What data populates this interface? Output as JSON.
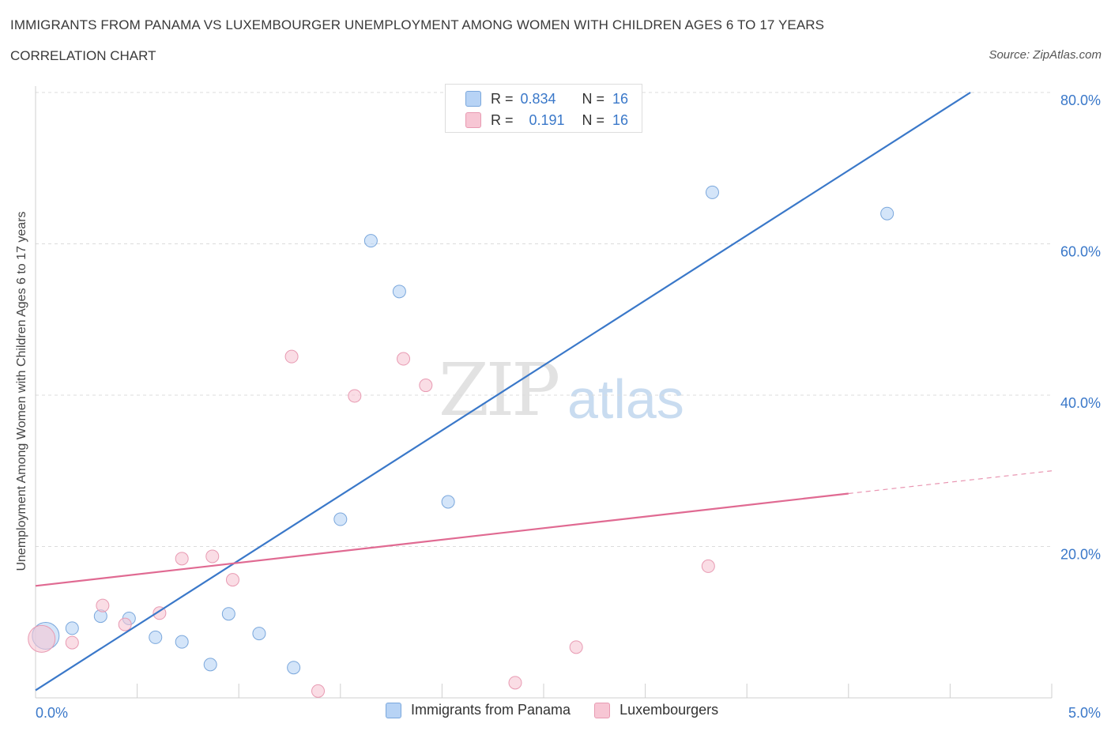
{
  "title": "IMMIGRANTS FROM PANAMA VS LUXEMBOURGER UNEMPLOYMENT AMONG WOMEN WITH CHILDREN AGES 6 TO 17 YEARS",
  "subtitle": "CORRELATION CHART",
  "source": "Source: ZipAtlas.com",
  "watermark": {
    "zip": "ZIP",
    "atlas": "atlas"
  },
  "stats": [
    {
      "r_label": "R =",
      "r": "0.834",
      "n_label": "N =",
      "n": "16",
      "color": "#b7d3f5",
      "border": "#7aa7dc"
    },
    {
      "r_label": "R =",
      "r": "0.191",
      "n_label": "N =",
      "n": "16",
      "color": "#f7c6d4",
      "border": "#e89ab2"
    }
  ],
  "legend": [
    {
      "label": "Immigrants from Panama",
      "color": "#b7d3f5",
      "border": "#7aa7dc"
    },
    {
      "label": "Luxembourgers",
      "color": "#f7c6d4",
      "border": "#e89ab2"
    }
  ],
  "chart_data": {
    "type": "scatter",
    "title": "IMMIGRANTS FROM PANAMA VS LUXEMBOURGER UNEMPLOYMENT AMONG WOMEN WITH CHILDREN AGES 6 TO 17 YEARS",
    "xlabel": "",
    "ylabel": "Unemployment Among Women with Children Ages 6 to 17 years",
    "xlim": [
      0,
      5
    ],
    "ylim": [
      0,
      80
    ],
    "x_tick_labels": [
      {
        "value": 0,
        "label": "0.0%"
      },
      {
        "value": 5,
        "label": "5.0%"
      }
    ],
    "y_tick_labels": [
      {
        "value": 20,
        "label": "20.0%"
      },
      {
        "value": 40,
        "label": "40.0%"
      },
      {
        "value": 60,
        "label": "60.0%"
      },
      {
        "value": 80,
        "label": "80.0%"
      }
    ],
    "series": [
      {
        "name": "Immigrants from Panama",
        "color": "#b7d3f5",
        "stroke": "#7aa7dc",
        "line_color": "#3a78c9",
        "trend": {
          "x1": 0,
          "y1": 1.0,
          "x2": 4.6,
          "y2": 80.0
        },
        "points": [
          {
            "x": 0.05,
            "y": 8.2,
            "big": true
          },
          {
            "x": 0.18,
            "y": 9.2
          },
          {
            "x": 0.32,
            "y": 10.8
          },
          {
            "x": 0.46,
            "y": 10.5
          },
          {
            "x": 0.59,
            "y": 8.0
          },
          {
            "x": 0.72,
            "y": 7.4
          },
          {
            "x": 0.86,
            "y": 4.4
          },
          {
            "x": 0.95,
            "y": 11.1
          },
          {
            "x": 1.1,
            "y": 8.5
          },
          {
            "x": 1.27,
            "y": 4.0
          },
          {
            "x": 1.5,
            "y": 23.6
          },
          {
            "x": 1.65,
            "y": 60.4
          },
          {
            "x": 1.79,
            "y": 53.7
          },
          {
            "x": 2.03,
            "y": 25.9
          },
          {
            "x": 3.33,
            "y": 66.8
          },
          {
            "x": 4.19,
            "y": 64.0
          }
        ]
      },
      {
        "name": "Luxembourgers",
        "color": "#f7c6d4",
        "stroke": "#e89ab2",
        "line_color": "#e06a92",
        "trend": {
          "x1": 0,
          "y1": 14.8,
          "x2": 4.0,
          "y2": 27.0
        },
        "trend_dashed": {
          "x1": 4.0,
          "y1": 27.0,
          "x2": 5.0,
          "y2": 30.0
        },
        "points": [
          {
            "x": 0.03,
            "y": 7.8,
            "big": true
          },
          {
            "x": 0.18,
            "y": 7.3
          },
          {
            "x": 0.33,
            "y": 12.2
          },
          {
            "x": 0.44,
            "y": 9.7
          },
          {
            "x": 0.61,
            "y": 11.2
          },
          {
            "x": 0.72,
            "y": 18.4
          },
          {
            "x": 0.87,
            "y": 18.7
          },
          {
            "x": 0.97,
            "y": 15.6
          },
          {
            "x": 1.26,
            "y": 45.1
          },
          {
            "x": 1.39,
            "y": 0.9
          },
          {
            "x": 1.57,
            "y": 39.9
          },
          {
            "x": 1.81,
            "y": 44.8
          },
          {
            "x": 1.92,
            "y": 41.3
          },
          {
            "x": 2.36,
            "y": 2.0
          },
          {
            "x": 2.66,
            "y": 6.7
          },
          {
            "x": 3.31,
            "y": 17.4
          }
        ]
      }
    ]
  }
}
